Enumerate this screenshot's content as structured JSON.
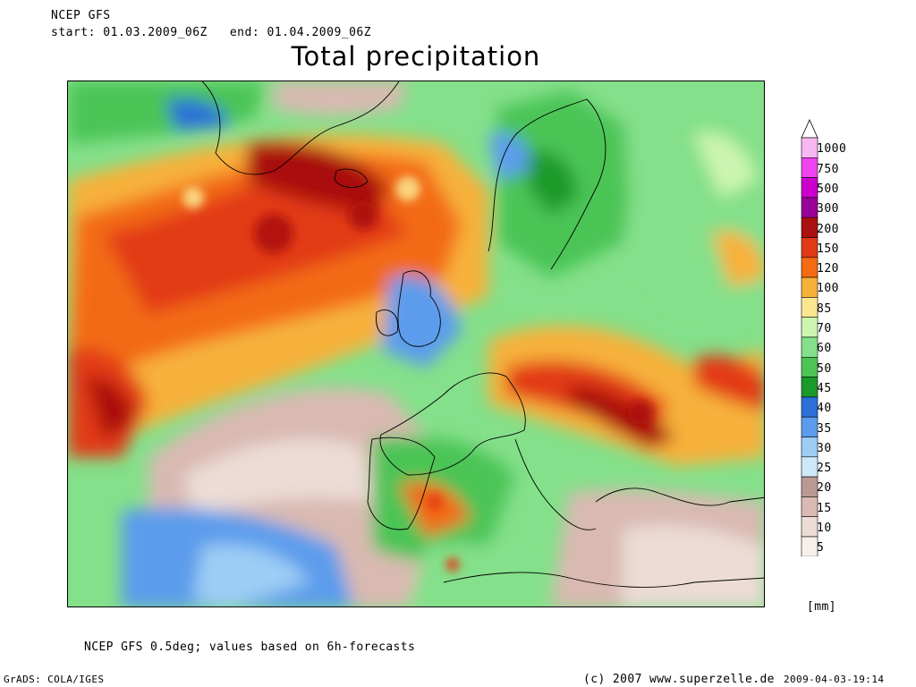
{
  "header": {
    "model": "NCEP GFS",
    "start_label": "start:",
    "start": "01.03.2009_06Z",
    "end_label": "end:",
    "end": "01.04.2009_06Z"
  },
  "title": "Total precipitation",
  "legend": {
    "unit": "[mm]",
    "levels": [
      {
        "label": "1000",
        "color": "#f7b7f0"
      },
      {
        "label": "750",
        "color": "#ee44ee"
      },
      {
        "label": "500",
        "color": "#cc00cc"
      },
      {
        "label": "300",
        "color": "#9a009a"
      },
      {
        "label": "200",
        "color": "#aa1111"
      },
      {
        "label": "150",
        "color": "#e23a16"
      },
      {
        "label": "120",
        "color": "#f36b12"
      },
      {
        "label": "100",
        "color": "#f7b13a"
      },
      {
        "label": "85",
        "color": "#fbe690"
      },
      {
        "label": "70",
        "color": "#ccf5b0"
      },
      {
        "label": "60",
        "color": "#84e08a"
      },
      {
        "label": "50",
        "color": "#4cc456"
      },
      {
        "label": "45",
        "color": "#1a9a2a"
      },
      {
        "label": "40",
        "color": "#2c6fd8"
      },
      {
        "label": "35",
        "color": "#5c9cec"
      },
      {
        "label": "30",
        "color": "#9ccdf5"
      },
      {
        "label": "25",
        "color": "#cde9f8"
      },
      {
        "label": "20",
        "color": "#b99a92"
      },
      {
        "label": "15",
        "color": "#d9b9b1"
      },
      {
        "label": "10",
        "color": "#ecdcd5"
      },
      {
        "label": "5",
        "color": "#f8efea"
      }
    ]
  },
  "footer": {
    "note": "NCEP GFS 0.5deg; values based on 6h-forecasts",
    "grads": "GrADS: COLA/IGES",
    "copyright": "(c) 2007 www.superzelle.de",
    "timestamp": "2009-04-03-19:14"
  }
}
